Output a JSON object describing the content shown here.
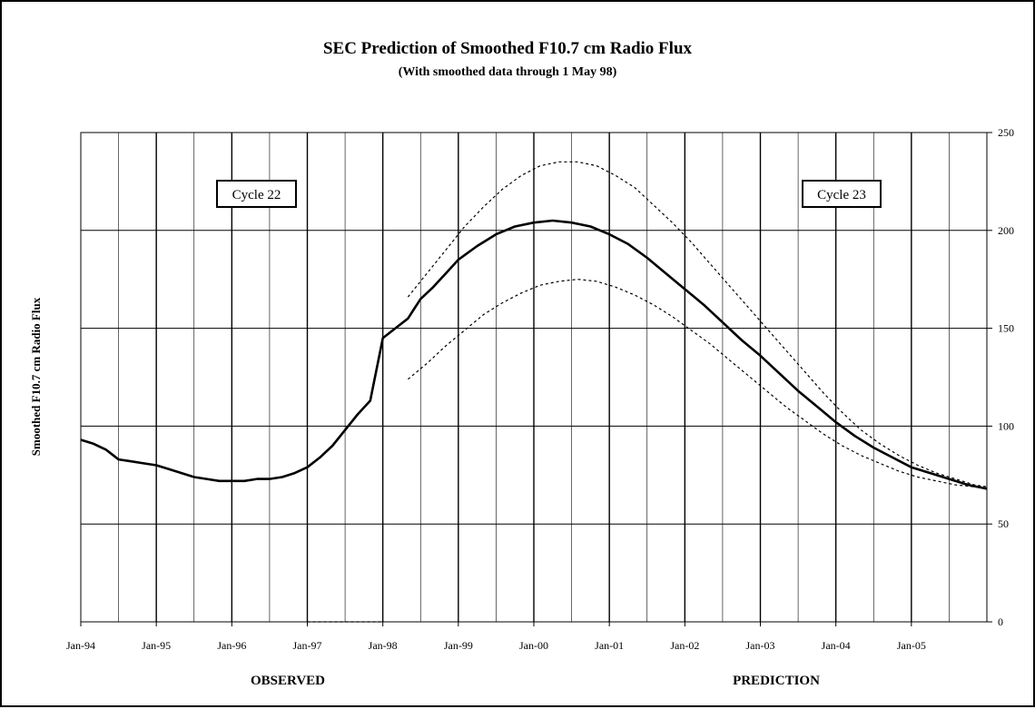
{
  "chart_data": {
    "type": "line",
    "title": "SEC Prediction of Smoothed F10.7 cm Radio Flux",
    "subtitle": "(With smoothed data through 1 May 98)",
    "ylabel": "Smoothed F10.7 cm Radio Flux",
    "ylim": [
      0,
      250
    ],
    "xlim": [
      "1994-01",
      "2006-01"
    ],
    "y_axis_side": "right",
    "y_ticks": [
      "0",
      "50",
      "100",
      "150",
      "200",
      "250"
    ],
    "x_tick_labels": [
      "Jan-94",
      "Jan-95",
      "Jan-96",
      "Jan-97",
      "Jan-98",
      "Jan-99",
      "Jan-00",
      "Jan-01",
      "Jan-02",
      "Jan-03",
      "Jan-04",
      "Jan-05"
    ],
    "grid": true,
    "bottom_labels": {
      "left": "OBSERVED",
      "right": "PREDICTION"
    },
    "annotations": [
      "Cycle 22",
      "Cycle 23"
    ],
    "series": [
      {
        "style": "solid",
        "x": [
          "1994-01",
          "1994-03",
          "1994-05",
          "1994-07",
          "1994-09",
          "1994-11",
          "1995-01",
          "1995-03",
          "1995-05",
          "1995-07",
          "1995-09",
          "1995-11",
          "1996-01",
          "1996-03",
          "1996-05",
          "1996-07",
          "1996-09",
          "1996-11",
          "1997-01",
          "1997-03",
          "1997-05",
          "1997-07",
          "1997-09",
          "1997-11",
          "1998-01",
          "1998-03",
          "1998-05",
          "1998-06",
          "1998-07",
          "1998-09",
          "1998-11",
          "1999-01",
          "1999-04",
          "1999-07",
          "1999-10",
          "2000-01",
          "2000-04",
          "2000-07",
          "2000-10",
          "2001-01",
          "2001-04",
          "2001-07",
          "2001-10",
          "2002-01",
          "2002-04",
          "2002-07",
          "2002-10",
          "2003-01",
          "2003-04",
          "2003-07",
          "2003-10",
          "2004-01",
          "2004-04",
          "2004-07",
          "2004-10",
          "2005-01",
          "2005-04",
          "2005-07",
          "2005-10",
          "2006-01"
        ],
        "y": [
          93,
          91,
          88,
          83,
          82,
          81,
          80,
          78,
          76,
          74,
          73,
          72,
          72,
          72,
          73,
          73,
          74,
          76,
          79,
          84,
          90,
          98,
          106,
          113,
          145,
          150,
          155,
          160,
          165,
          171,
          178,
          185,
          192,
          198,
          202,
          204,
          205,
          204,
          202,
          198,
          193,
          186,
          178,
          170,
          162,
          153,
          144,
          136,
          127,
          118,
          110,
          102,
          95,
          89,
          84,
          79,
          76,
          73,
          70,
          68
        ]
      },
      {
        "style": "dotted",
        "name_hint": "upper",
        "x": [
          "1998-05",
          "1998-08",
          "1998-11",
          "1999-02",
          "1999-05",
          "1999-08",
          "1999-11",
          "2000-02",
          "2000-05",
          "2000-08",
          "2000-11",
          "2001-02",
          "2001-05",
          "2001-08",
          "2001-11",
          "2002-02",
          "2002-05",
          "2002-08",
          "2002-11",
          "2003-02",
          "2003-05",
          "2003-08",
          "2003-11",
          "2004-02",
          "2004-05",
          "2004-08",
          "2004-11",
          "2005-02",
          "2005-05",
          "2005-08",
          "2005-11",
          "2006-01"
        ],
        "y": [
          166,
          178,
          190,
          202,
          212,
          221,
          228,
          233,
          235,
          235,
          233,
          228,
          222,
          213,
          204,
          194,
          183,
          172,
          161,
          150,
          139,
          128,
          117,
          107,
          98,
          91,
          85,
          80,
          76,
          73,
          70,
          69
        ]
      },
      {
        "style": "dotted",
        "name_hint": "lower",
        "x": [
          "1998-05",
          "1998-08",
          "1998-11",
          "1999-02",
          "1999-05",
          "1999-08",
          "1999-11",
          "2000-02",
          "2000-05",
          "2000-08",
          "2000-11",
          "2001-02",
          "2001-05",
          "2001-08",
          "2001-11",
          "2002-02",
          "2002-05",
          "2002-08",
          "2002-11",
          "2003-02",
          "2003-05",
          "2003-08",
          "2003-11",
          "2004-02",
          "2004-05",
          "2004-08",
          "2004-11",
          "2005-02",
          "2005-05",
          "2005-08",
          "2005-11",
          "2006-01"
        ],
        "y": [
          124,
          132,
          141,
          149,
          157,
          163,
          168,
          172,
          174,
          175,
          174,
          171,
          167,
          162,
          156,
          149,
          142,
          134,
          126,
          118,
          110,
          103,
          96,
          90,
          85,
          81,
          77,
          74,
          72,
          70,
          69,
          68
        ]
      },
      {
        "style": "dotted",
        "name_hint": "baseline",
        "x": [
          "1997-01",
          "1998-01"
        ],
        "y": [
          0,
          0
        ]
      }
    ]
  }
}
